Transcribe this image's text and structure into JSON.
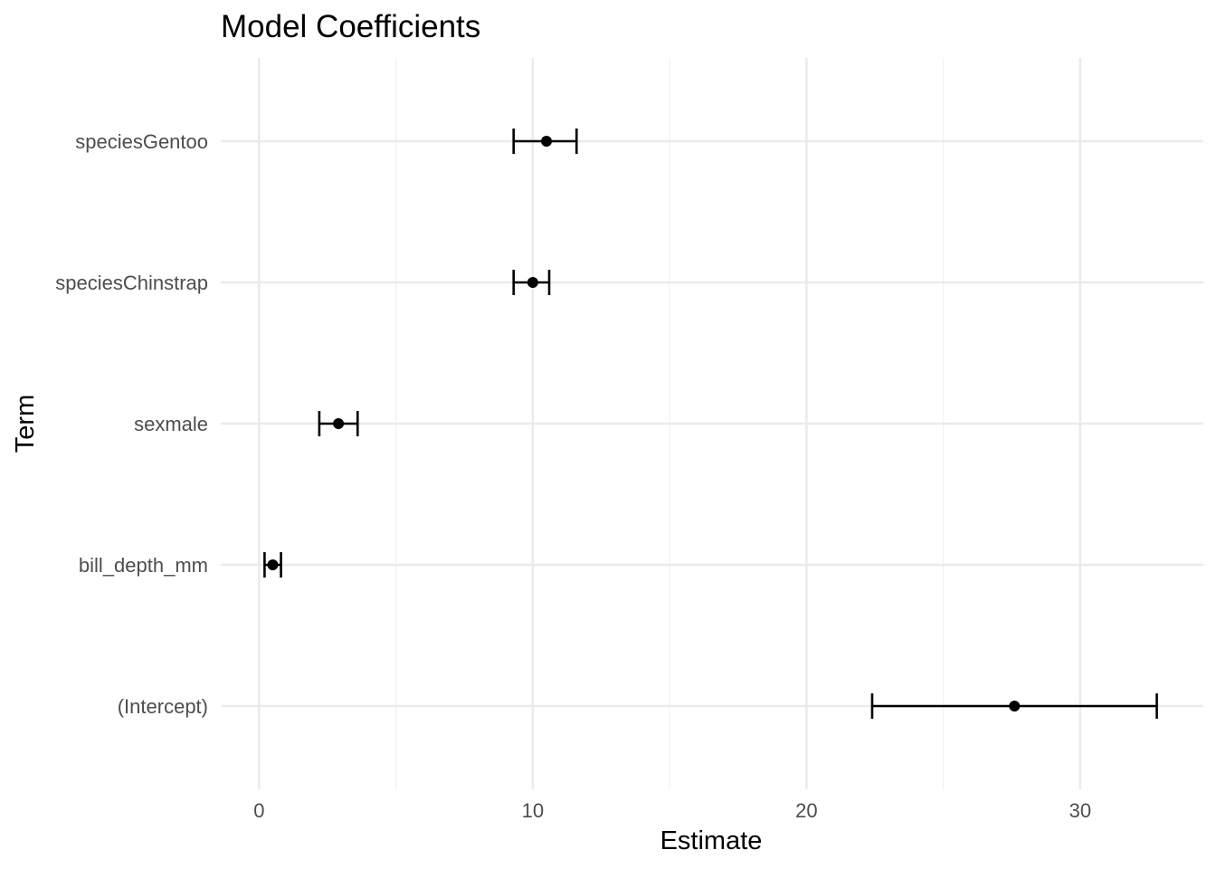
{
  "chart_data": {
    "type": "scatter",
    "title": "Model Coefficients",
    "xlabel": "Estimate",
    "ylabel": "Term",
    "xlim": [
      -1.4,
      34.5
    ],
    "x_major_ticks": [
      0,
      10,
      20,
      30
    ],
    "x_minor_ticks": [
      5,
      15,
      25
    ],
    "x_tick_labels": [
      "0",
      "10",
      "20",
      "30"
    ],
    "grid": true,
    "legend": "none",
    "categories": [
      "(Intercept)",
      "bill_depth_mm",
      "sexmale",
      "speciesChinstrap",
      "speciesGentoo"
    ],
    "series": [
      {
        "estimates": [
          27.6,
          0.5,
          2.9,
          10.0,
          10.5
        ],
        "conf_low": [
          22.4,
          0.2,
          2.2,
          9.3,
          9.3
        ],
        "conf_high": [
          32.8,
          0.8,
          3.6,
          10.6,
          11.6
        ]
      }
    ],
    "colors": {
      "point": "#000000",
      "errorbar": "#000000",
      "grid_major": "#ebebeb",
      "grid_minor": "#f2f2f2",
      "tick_label": "#4d4d4d",
      "background": "#ffffff"
    }
  }
}
